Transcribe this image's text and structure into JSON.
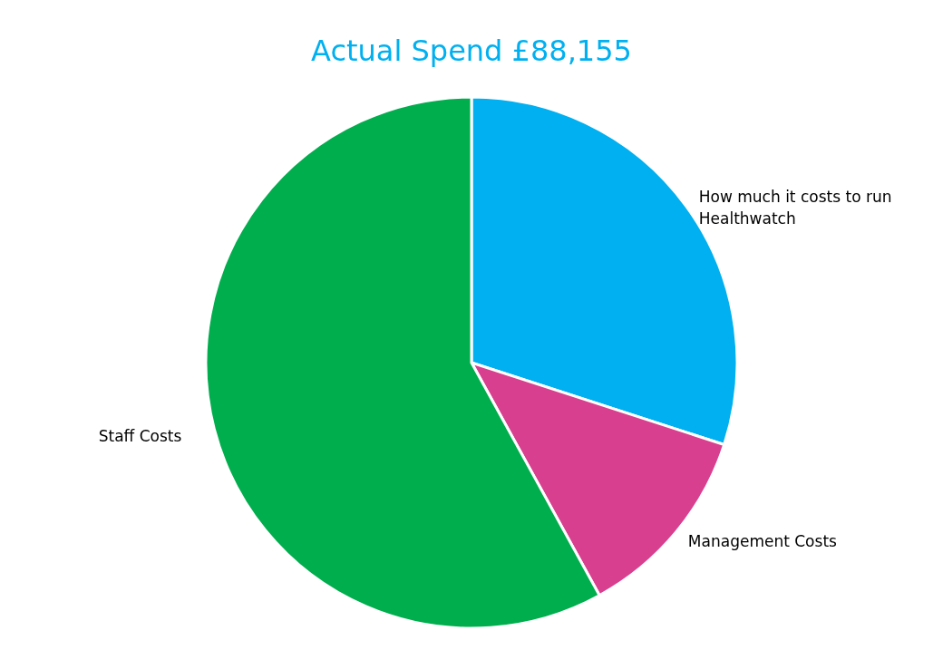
{
  "chart_data": {
    "type": "pie",
    "title": "Actual Spend £88,155",
    "categories": [
      "How much it costs to run Healthwatch",
      "Management Costs",
      "Staff Costs"
    ],
    "values": [
      30,
      12,
      58
    ],
    "colors": [
      "#00b0f0",
      "#d93f8f",
      "#00ae4d"
    ],
    "legend": false
  }
}
